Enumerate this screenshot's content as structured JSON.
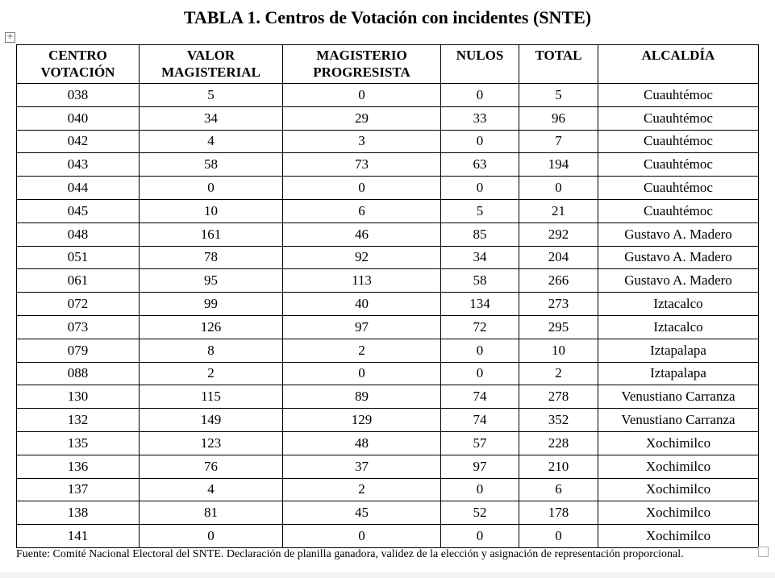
{
  "title": "TABLA 1. Centros de Votación con incidentes (SNTE)",
  "table": {
    "header": [
      "CENTRO\nVOTACIÓN",
      "VALOR\nMAGISTERIAL",
      "MAGISTERIO\nPROGRESISTA",
      "NULOS",
      "TOTAL",
      "ALCALDÍA"
    ],
    "rows": [
      [
        "038",
        "5",
        "0",
        "0",
        "5",
        "Cuauhtémoc"
      ],
      [
        "040",
        "34",
        "29",
        "33",
        "96",
        "Cuauhtémoc"
      ],
      [
        "042",
        "4",
        "3",
        "0",
        "7",
        "Cuauhtémoc"
      ],
      [
        "043",
        "58",
        "73",
        "63",
        "194",
        "Cuauhtémoc"
      ],
      [
        "044",
        "0",
        "0",
        "0",
        "0",
        "Cuauhtémoc"
      ],
      [
        "045",
        "10",
        "6",
        "5",
        "21",
        "Cuauhtémoc"
      ],
      [
        "048",
        "161",
        "46",
        "85",
        "292",
        "Gustavo A. Madero"
      ],
      [
        "051",
        "78",
        "92",
        "34",
        "204",
        "Gustavo A. Madero"
      ],
      [
        "061",
        "95",
        "113",
        "58",
        "266",
        "Gustavo A. Madero"
      ],
      [
        "072",
        "99",
        "40",
        "134",
        "273",
        "Iztacalco"
      ],
      [
        "073",
        "126",
        "97",
        "72",
        "295",
        "Iztacalco"
      ],
      [
        "079",
        "8",
        "2",
        "0",
        "10",
        "Iztapalapa"
      ],
      [
        "088",
        "2",
        "0",
        "0",
        "2",
        "Iztapalapa"
      ],
      [
        "130",
        "115",
        "89",
        "74",
        "278",
        "Venustiano Carranza"
      ],
      [
        "132",
        "149",
        "129",
        "74",
        "352",
        "Venustiano Carranza"
      ],
      [
        "135",
        "123",
        "48",
        "57",
        "228",
        "Xochimilco"
      ],
      [
        "136",
        "76",
        "37",
        "97",
        "210",
        "Xochimilco"
      ],
      [
        "137",
        "4",
        "2",
        "0",
        "6",
        "Xochimilco"
      ],
      [
        "138",
        "81",
        "45",
        "52",
        "178",
        "Xochimilco"
      ],
      [
        "141",
        "0",
        "0",
        "0",
        "0",
        "Xochimilco"
      ]
    ]
  },
  "source": "Fuente: Comité Nacional Electoral del SNTE. Declaración de planilla ganadora, validez de la elección y asignación de representación proporcional."
}
